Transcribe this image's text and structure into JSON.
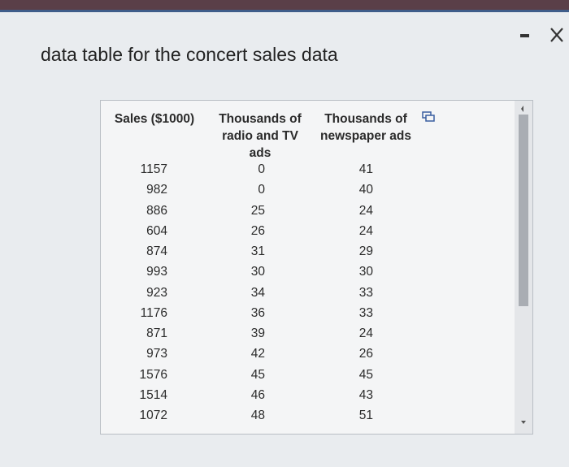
{
  "dialog": {
    "title": "data table for the concert sales data",
    "table": {
      "headers": [
        "Sales ($1000)",
        "Thousands of radio and TV ads",
        "Thousands of newspaper ads"
      ],
      "rows": [
        [
          1157,
          0,
          41
        ],
        [
          982,
          0,
          40
        ],
        [
          886,
          25,
          24
        ],
        [
          604,
          26,
          24
        ],
        [
          874,
          31,
          29
        ],
        [
          993,
          30,
          30
        ],
        [
          923,
          34,
          33
        ],
        [
          1176,
          36,
          33
        ],
        [
          871,
          39,
          24
        ],
        [
          973,
          42,
          26
        ],
        [
          1576,
          45,
          45
        ],
        [
          1514,
          46,
          43
        ],
        [
          1072,
          48,
          51
        ]
      ]
    }
  }
}
